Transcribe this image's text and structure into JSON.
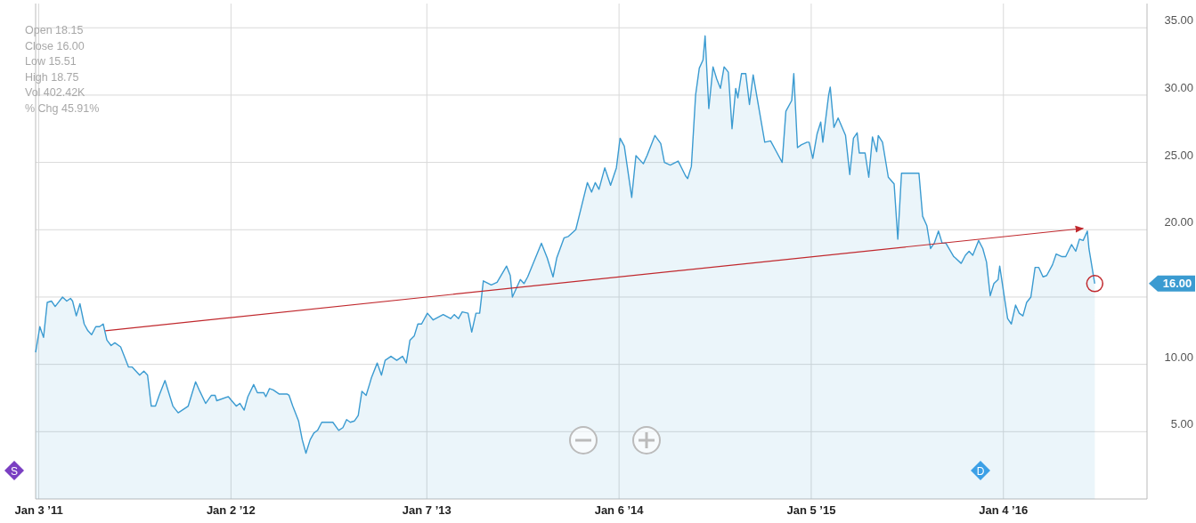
{
  "chart_data": {
    "type": "area",
    "xlim": [
      "2010-12-28",
      "2016-10-02"
    ],
    "ylim": [
      0,
      36.8
    ],
    "xticks": [
      {
        "value": "2011-01-03",
        "label": "Jan 3 ’11"
      },
      {
        "value": "2012-01-02",
        "label": "Jan 2 ’12"
      },
      {
        "value": "2013-01-07",
        "label": "Jan 7 ’13"
      },
      {
        "value": "2014-01-06",
        "label": "Jan 6 ’14"
      },
      {
        "value": "2015-01-05",
        "label": "Jan 5 ’15"
      },
      {
        "value": "2016-01-04",
        "label": "Jan 4 ’16"
      }
    ],
    "yticks": [
      {
        "value": 5,
        "label": "5.00"
      },
      {
        "value": 10,
        "label": "10.00"
      },
      {
        "value": 15,
        "label": null
      },
      {
        "value": 20,
        "label": "20.00"
      },
      {
        "value": 25,
        "label": "25.00"
      },
      {
        "value": 30,
        "label": "30.00"
      },
      {
        "value": 35,
        "label": "35.00"
      }
    ],
    "grid": true,
    "series": [
      {
        "color": "#3b9bd1",
        "x": [
          "2010-12-28",
          "2011-01-05",
          "2011-01-12",
          "2011-01-19",
          "2011-01-27",
          "2011-02-03",
          "2011-02-17",
          "2011-02-25",
          "2011-03-04",
          "2011-03-08",
          "2011-03-15",
          "2011-03-22",
          "2011-03-30",
          "2011-04-06",
          "2011-04-13",
          "2011-04-21",
          "2011-04-28",
          "2011-05-05",
          "2011-05-12",
          "2011-05-20",
          "2011-05-27",
          "2011-06-07",
          "2011-06-22",
          "2011-06-29",
          "2011-07-13",
          "2011-07-21",
          "2011-07-28",
          "2011-08-04",
          "2011-08-12",
          "2011-08-19",
          "2011-08-30",
          "2011-09-14",
          "2011-09-24",
          "2011-10-13",
          "2011-10-27",
          "2011-11-04",
          "2011-11-15",
          "2011-11-26",
          "2011-12-03",
          "2011-12-06",
          "2011-12-28",
          "2012-01-12",
          "2012-01-19",
          "2012-01-27",
          "2012-02-03",
          "2012-02-14",
          "2012-02-21",
          "2012-03-04",
          "2012-03-08",
          "2012-03-15",
          "2012-03-22",
          "2012-04-02",
          "2012-04-17",
          "2012-04-21",
          "2012-04-28",
          "2012-05-09",
          "2012-05-16",
          "2012-05-23",
          "2012-05-31",
          "2012-06-07",
          "2012-06-14",
          "2012-06-22",
          "2012-06-29",
          "2012-07-13",
          "2012-07-24",
          "2012-08-01",
          "2012-08-08",
          "2012-08-15",
          "2012-08-23",
          "2012-08-30",
          "2012-09-06",
          "2012-09-14",
          "2012-09-21",
          "2012-09-24",
          "2012-10-05",
          "2012-10-13",
          "2012-10-20",
          "2012-10-31",
          "2012-11-11",
          "2012-11-22",
          "2012-11-29",
          "2012-12-06",
          "2012-12-14",
          "2012-12-21",
          "2012-12-28",
          "2013-01-08",
          "2013-01-19",
          "2013-02-07",
          "2013-02-21",
          "2013-02-28",
          "2013-03-08",
          "2013-03-15",
          "2013-03-26",
          "2013-04-02",
          "2013-04-10",
          "2013-04-17",
          "2013-04-24",
          "2013-05-09",
          "2013-05-20",
          "2013-06-07",
          "2013-06-14",
          "2013-06-18",
          "2013-07-03",
          "2013-07-10",
          "2013-07-17",
          "2013-08-12",
          "2013-08-23",
          "2013-09-03",
          "2013-09-10",
          "2013-09-24",
          "2013-10-02",
          "2013-10-16",
          "2013-11-07",
          "2013-11-15",
          "2013-11-22",
          "2013-11-29",
          "2013-12-10",
          "2013-12-21",
          "2014-01-01",
          "2014-01-08",
          "2014-01-16",
          "2014-01-30",
          "2014-02-07",
          "2014-02-21",
          "2014-02-28",
          "2014-03-15",
          "2014-03-26",
          "2014-04-02",
          "2014-04-13",
          "2014-04-28",
          "2014-05-12",
          "2014-05-16",
          "2014-05-23",
          "2014-05-31",
          "2014-06-07",
          "2014-06-14",
          "2014-06-18",
          "2014-06-25",
          "2014-07-03",
          "2014-07-10",
          "2014-07-17",
          "2014-07-24",
          "2014-08-01",
          "2014-08-08",
          "2014-08-15",
          "2014-08-19",
          "2014-08-26",
          "2014-09-03",
          "2014-09-10",
          "2014-09-17",
          "2014-10-09",
          "2014-10-20",
          "2014-10-31",
          "2014-11-11",
          "2014-11-18",
          "2014-11-29",
          "2014-12-03",
          "2014-12-10",
          "2014-12-17",
          "2014-12-28",
          "2015-01-01",
          "2015-01-08",
          "2015-01-16",
          "2015-01-23",
          "2015-01-27",
          "2015-02-07",
          "2015-02-10",
          "2015-02-17",
          "2015-02-25",
          "2015-03-11",
          "2015-03-19",
          "2015-03-26",
          "2015-04-02",
          "2015-04-06",
          "2015-04-17",
          "2015-04-24",
          "2015-05-01",
          "2015-05-09",
          "2015-05-12",
          "2015-05-20",
          "2015-05-31",
          "2015-06-11",
          "2015-06-18",
          "2015-06-25",
          "2015-07-28",
          "2015-08-04",
          "2015-08-12",
          "2015-08-19",
          "2015-08-26",
          "2015-09-03",
          "2015-09-10",
          "2015-09-17",
          "2015-10-02",
          "2015-10-05",
          "2015-10-16",
          "2015-10-24",
          "2015-10-31",
          "2015-11-07",
          "2015-11-18",
          "2015-11-26",
          "2015-12-03",
          "2015-12-10",
          "2015-12-17",
          "2015-12-25",
          "2015-12-28",
          "2016-01-05",
          "2016-01-12",
          "2016-01-19",
          "2016-01-27",
          "2016-02-03",
          "2016-02-10",
          "2016-02-17",
          "2016-02-25",
          "2016-03-04",
          "2016-03-11",
          "2016-03-19",
          "2016-03-26",
          "2016-04-06",
          "2016-04-13",
          "2016-04-24",
          "2016-05-01",
          "2016-05-12",
          "2016-05-20",
          "2016-05-27",
          "2016-06-03",
          "2016-06-11",
          "2016-06-14",
          "2016-06-25"
        ],
        "values": [
          10.9,
          12.8,
          12.0,
          14.6,
          14.7,
          14.3,
          15.0,
          14.7,
          14.9,
          14.7,
          13.6,
          14.5,
          13.0,
          12.5,
          12.2,
          12.8,
          12.8,
          13.0,
          11.8,
          11.4,
          11.6,
          11.3,
          9.8,
          9.8,
          9.2,
          9.5,
          9.2,
          6.9,
          6.9,
          7.7,
          8.8,
          6.9,
          6.4,
          6.9,
          8.7,
          8.0,
          7.1,
          7.7,
          7.7,
          7.3,
          7.6,
          6.9,
          7.1,
          6.6,
          7.6,
          8.5,
          7.9,
          7.9,
          7.6,
          8.2,
          8.1,
          7.8,
          7.8,
          7.7,
          6.9,
          5.8,
          4.4,
          3.4,
          4.4,
          4.9,
          5.1,
          5.7,
          5.7,
          5.7,
          5.1,
          5.3,
          5.9,
          5.7,
          5.8,
          6.2,
          8.0,
          7.7,
          8.6,
          9.0,
          10.1,
          9.2,
          10.3,
          10.6,
          10.3,
          10.6,
          10.1,
          11.8,
          12.1,
          13.0,
          13.0,
          13.8,
          13.3,
          13.7,
          13.4,
          13.7,
          13.4,
          13.9,
          13.8,
          12.4,
          13.8,
          13.8,
          16.2,
          15.9,
          16.1,
          17.3,
          16.6,
          15.0,
          16.3,
          16.0,
          16.5,
          19.0,
          17.9,
          16.5,
          17.9,
          19.4,
          19.5,
          20.0,
          23.5,
          22.8,
          23.5,
          23.0,
          24.6,
          23.3,
          24.6,
          26.8,
          26.2,
          22.4,
          25.5,
          24.9,
          25.5,
          27.0,
          26.4,
          25.0,
          24.8,
          25.1,
          24.0,
          23.8,
          24.7,
          30.0,
          32.0,
          32.6,
          34.4,
          29.0,
          32.1,
          31.2,
          30.5,
          32.1,
          31.7,
          27.5,
          30.5,
          29.8,
          31.6,
          31.6,
          29.3,
          31.5,
          26.5,
          26.6,
          25.8,
          25.0,
          28.8,
          29.6,
          31.6,
          26.1,
          26.3,
          26.5,
          26.5,
          25.3,
          27.1,
          28.0,
          26.5,
          30.0,
          30.6,
          27.6,
          28.3,
          27.0,
          24.1,
          26.8,
          27.2,
          25.7,
          25.7,
          23.9,
          26.9,
          25.8,
          27.0,
          26.5,
          23.9,
          23.4,
          19.3,
          24.2,
          24.2,
          21.0,
          20.3,
          18.6,
          19.0,
          19.9,
          19.0,
          19.0,
          18.0,
          17.9,
          17.5,
          18.1,
          18.4,
          18.1,
          19.2,
          18.6,
          17.6,
          15.1,
          16.0,
          16.3,
          17.3,
          15.2,
          13.4,
          13.0,
          14.4,
          13.8,
          13.6,
          14.6,
          15.0,
          17.2,
          17.2,
          16.5,
          16.6,
          17.4,
          18.2,
          18.0,
          18.0,
          18.9,
          18.4,
          19.3,
          19.2,
          19.9,
          18.6,
          16.0
        ]
      },
      {
        "type": "line",
        "color": "#c0282d",
        "x": [
          "2011-05-09",
          "2016-06-03"
        ],
        "values": [
          12.5,
          20.1
        ]
      }
    ],
    "annotations": [
      "Open 18.15",
      "Close 16.00",
      "Low 15.51",
      "High 18.75",
      "Vol 402.42K",
      "% Chg 45.91%",
      "S",
      "D",
      "16.00"
    ]
  }
}
